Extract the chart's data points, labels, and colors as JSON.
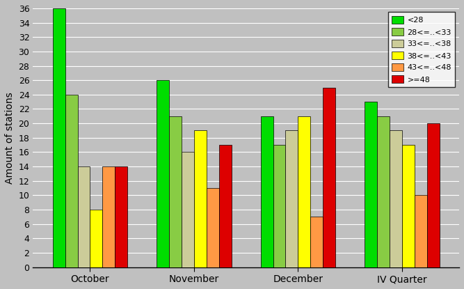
{
  "categories": [
    "October",
    "November",
    "December",
    "IV Quarter"
  ],
  "series": [
    {
      "label": "<28",
      "color": "#00dd00",
      "values": [
        36,
        26,
        21,
        23
      ]
    },
    {
      "label": "28<=..<33",
      "color": "#88cc44",
      "values": [
        24,
        21,
        17,
        21
      ]
    },
    {
      "label": "33<=..<38",
      "color": "#cccc99",
      "values": [
        14,
        16,
        19,
        19
      ]
    },
    {
      "label": "38<=..<43",
      "color": "#ffff00",
      "values": [
        8,
        19,
        21,
        17
      ]
    },
    {
      "label": "43<=..<48",
      "color": "#ff9944",
      "values": [
        14,
        11,
        7,
        10
      ]
    },
    {
      "label": ">=48",
      "color": "#dd0000",
      "values": [
        14,
        17,
        25,
        20
      ]
    }
  ],
  "ylabel": "Amount of stations",
  "ylim": [
    0,
    36
  ],
  "yticks": [
    0,
    2,
    4,
    6,
    8,
    10,
    12,
    14,
    16,
    18,
    20,
    22,
    24,
    26,
    28,
    30,
    32,
    34,
    36
  ],
  "background_color": "#c0c0c0",
  "plot_bg_color": "#c0c0c0",
  "grid_color": "#ffffff",
  "bar_edge_color": "#000000",
  "gap_color": "#c0c0c0",
  "legend_loc": "upper right"
}
